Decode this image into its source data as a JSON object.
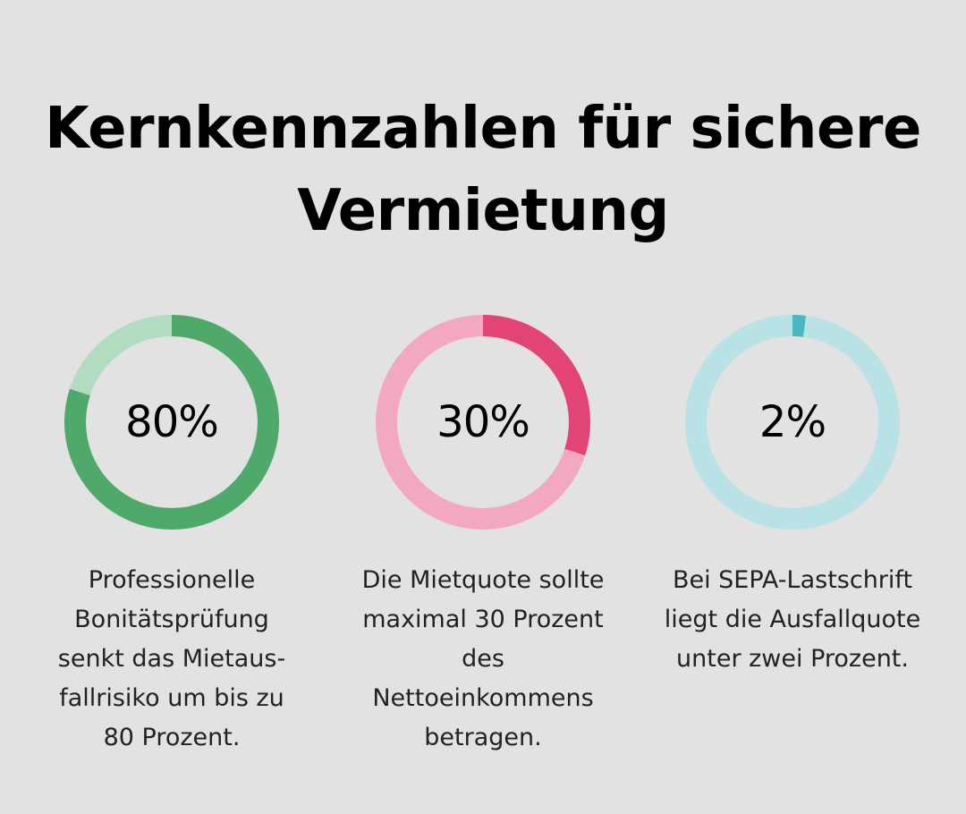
{
  "title_lines": [
    "Kernkennzahlen für sichere",
    "Vermietung"
  ],
  "chart_data": [
    {
      "type": "pie",
      "value": 80,
      "label": "80%",
      "caption_lines": [
        "Professionelle",
        "Bonitätsprüfung",
        "senkt das Mietaus-",
        "fallrisiko um bis zu",
        "80 Prozent."
      ],
      "colors": {
        "fill": "#4ea96b",
        "track": "#b1dcc1"
      }
    },
    {
      "type": "pie",
      "value": 30,
      "label": "30%",
      "caption_lines": [
        "Die Mietquote sollte",
        "maximal 30 Prozent",
        "des",
        "Nettoeinkommens",
        "betragen."
      ],
      "colors": {
        "fill": "#e24475",
        "track": "#f3a8c1"
      }
    },
    {
      "type": "pie",
      "value": 2,
      "label": "2%",
      "caption_lines": [
        "Bei SEPA-Lastschrift",
        "liegt die Ausfallquote",
        "unter zwei Prozent."
      ],
      "colors": {
        "fill": "#4bb7c2",
        "track": "#b8e2e6"
      }
    }
  ]
}
